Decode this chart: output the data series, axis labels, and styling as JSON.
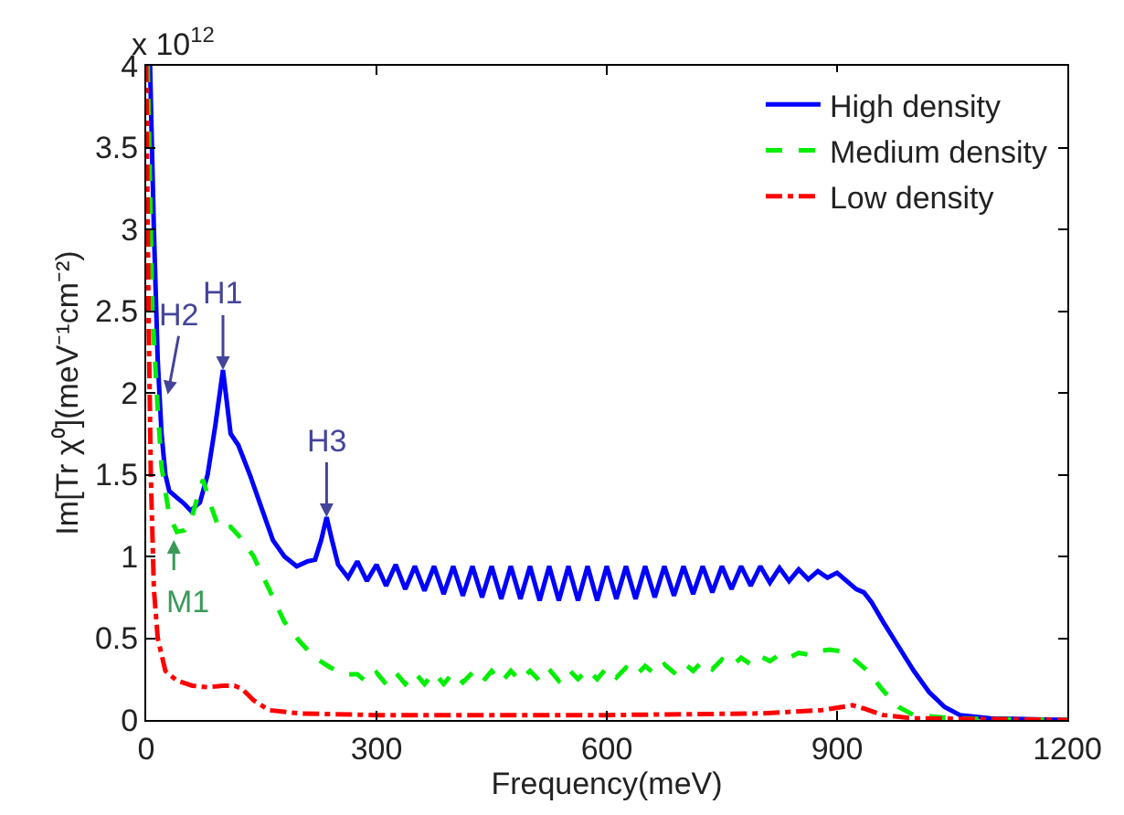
{
  "chart_data": {
    "type": "line",
    "xlabel": "Frequency(meV)",
    "ylabel": "Im[Tr χ⁰](meV⁻¹cm⁻²)",
    "xlim": [
      0,
      1200
    ],
    "xticks": [
      0,
      300,
      600,
      900,
      1200
    ],
    "ylim": [
      0,
      4
    ],
    "yticks": [
      0,
      0.5,
      1,
      1.5,
      2,
      2.5,
      3,
      3.5,
      4
    ],
    "legend": "top right",
    "marker": "none",
    "annotations": [
      "x 10$^{12}$",
      {
        "text": "H1",
        "x": 100,
        "y": 2.14
      },
      {
        "text": "H2",
        "x": 28,
        "y": 1.99
      },
      {
        "text": "H3",
        "x": 235,
        "y": 1.24
      },
      {
        "text": "M1",
        "x": 36,
        "y": 1.1
      }
    ],
    "series": [
      {
        "name": "High density",
        "color": "#0000ff",
        "line_style": "solid",
        "x": [
          5,
          10,
          15,
          20,
          25,
          30,
          40,
          50,
          58,
          70,
          80,
          90,
          100,
          110,
          120,
          135,
          150,
          165,
          180,
          196,
          210,
          220,
          228,
          235,
          242,
          250,
          263,
          275,
          287.5,
          300,
          312.5,
          325,
          337.5,
          350,
          362.5,
          375,
          387.5,
          400,
          412.5,
          425,
          437.5,
          450,
          462.5,
          475,
          487.5,
          500,
          512.5,
          525,
          537.5,
          550,
          562.5,
          575,
          587.5,
          600,
          612.5,
          625,
          637.5,
          650,
          662.5,
          675,
          687.5,
          700,
          712.5,
          725,
          737.5,
          750,
          762.5,
          775,
          787.5,
          800,
          812.5,
          825,
          837.5,
          850,
          862.5,
          875,
          887.5,
          900,
          912.5,
          925,
          935,
          945,
          960,
          980,
          1000,
          1020,
          1040,
          1060,
          1100,
          1200
        ],
        "values": [
          4.0,
          3.0,
          2.2,
          1.75,
          1.5,
          1.4,
          1.36,
          1.32,
          1.28,
          1.33,
          1.5,
          1.8,
          2.14,
          1.75,
          1.68,
          1.5,
          1.3,
          1.1,
          1.0,
          0.94,
          0.97,
          0.98,
          1.1,
          1.24,
          1.1,
          0.95,
          0.87,
          0.97,
          0.85,
          0.95,
          0.82,
          0.95,
          0.8,
          0.94,
          0.79,
          0.94,
          0.77,
          0.94,
          0.76,
          0.94,
          0.75,
          0.94,
          0.74,
          0.94,
          0.74,
          0.94,
          0.73,
          0.94,
          0.73,
          0.94,
          0.73,
          0.94,
          0.73,
          0.94,
          0.74,
          0.94,
          0.74,
          0.94,
          0.75,
          0.94,
          0.76,
          0.94,
          0.77,
          0.94,
          0.78,
          0.94,
          0.8,
          0.94,
          0.82,
          0.94,
          0.84,
          0.93,
          0.85,
          0.92,
          0.86,
          0.91,
          0.87,
          0.9,
          0.85,
          0.8,
          0.78,
          0.72,
          0.6,
          0.45,
          0.3,
          0.17,
          0.08,
          0.03,
          0.01,
          0.0
        ]
      },
      {
        "name": "Medium density",
        "color": "#00ee00",
        "line_style": "dashed",
        "x": [
          2,
          8,
          15,
          20,
          30,
          40,
          50,
          60,
          68,
          74,
          85,
          95,
          110,
          120,
          140,
          160,
          180,
          200,
          220,
          240,
          260,
          275,
          287.5,
          300,
          312.5,
          325,
          337.5,
          350,
          362.5,
          375,
          387.5,
          400,
          412.5,
          425,
          437.5,
          450,
          462.5,
          475,
          487.5,
          500,
          512.5,
          525,
          537.5,
          550,
          562.5,
          575,
          587.5,
          600,
          612.5,
          625,
          637.5,
          650,
          662.5,
          675,
          687.5,
          700,
          712.5,
          725,
          737.5,
          750,
          762.5,
          775,
          787.5,
          800,
          812.5,
          825,
          837.5,
          850,
          862.5,
          875,
          890,
          905,
          920,
          940,
          960,
          980,
          1000,
          1050,
          1200
        ],
        "values": [
          4.0,
          2.5,
          1.9,
          1.55,
          1.25,
          1.15,
          1.16,
          1.25,
          1.38,
          1.47,
          1.3,
          1.17,
          1.18,
          1.13,
          1.0,
          0.8,
          0.6,
          0.48,
          0.38,
          0.32,
          0.28,
          0.28,
          0.23,
          0.29,
          0.22,
          0.29,
          0.22,
          0.29,
          0.22,
          0.29,
          0.22,
          0.29,
          0.23,
          0.29,
          0.23,
          0.3,
          0.23,
          0.3,
          0.24,
          0.3,
          0.24,
          0.31,
          0.24,
          0.31,
          0.25,
          0.31,
          0.25,
          0.32,
          0.26,
          0.32,
          0.27,
          0.33,
          0.28,
          0.34,
          0.29,
          0.35,
          0.3,
          0.36,
          0.31,
          0.37,
          0.33,
          0.38,
          0.34,
          0.39,
          0.36,
          0.4,
          0.38,
          0.41,
          0.4,
          0.42,
          0.43,
          0.42,
          0.38,
          0.3,
          0.18,
          0.08,
          0.03,
          0.01,
          0.0
        ]
      },
      {
        "name": "Low density",
        "color": "#ff0000",
        "line_style": "dashdot",
        "x": [
          0,
          3,
          6,
          10,
          15,
          25,
          40,
          60,
          80,
          100,
          115,
          125,
          140,
          160,
          200,
          300,
          600,
          800,
          880,
          920,
          935,
          960,
          1000,
          1200
        ],
        "values": [
          4.0,
          2.5,
          1.5,
          0.8,
          0.5,
          0.3,
          0.24,
          0.21,
          0.2,
          0.21,
          0.21,
          0.19,
          0.12,
          0.06,
          0.04,
          0.03,
          0.03,
          0.04,
          0.06,
          0.09,
          0.07,
          0.03,
          0.01,
          0.0
        ]
      }
    ]
  }
}
